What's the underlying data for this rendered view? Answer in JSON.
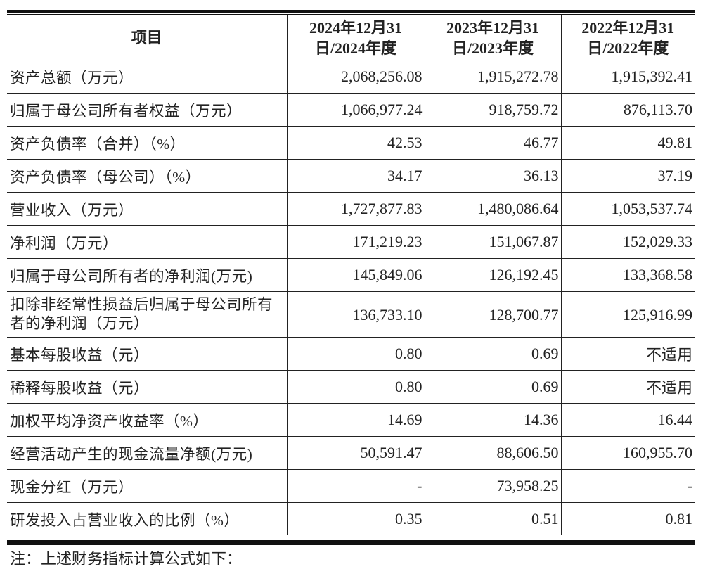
{
  "header": {
    "item": "项目",
    "cols": [
      {
        "line1": "2024年12月31",
        "line2": "日/2024年度"
      },
      {
        "line1": "2023年12月31",
        "line2": "日/2023年度"
      },
      {
        "line1": "2022年12月31",
        "line2": "日/2022年度"
      }
    ]
  },
  "rows": [
    {
      "label": "资产总额（万元）",
      "v": [
        "2,068,256.08",
        "1,915,272.78",
        "1,915,392.41"
      ]
    },
    {
      "label": "归属于母公司所有者权益（万元）",
      "v": [
        "1,066,977.24",
        "918,759.72",
        "876,113.70"
      ]
    },
    {
      "label": "资产负债率（合并）（%）",
      "v": [
        "42.53",
        "46.77",
        "49.81"
      ]
    },
    {
      "label": "资产负债率（母公司）（%）",
      "v": [
        "34.17",
        "36.13",
        "37.19"
      ]
    },
    {
      "label": "营业收入（万元）",
      "v": [
        "1,727,877.83",
        "1,480,086.64",
        "1,053,537.74"
      ]
    },
    {
      "label": "净利润（万元）",
      "v": [
        "171,219.23",
        "151,067.87",
        "152,029.33"
      ]
    },
    {
      "label": "归属于母公司所有者的净利润(万元)",
      "v": [
        "145,849.06",
        "126,192.45",
        "133,368.58"
      ]
    },
    {
      "label": "扣除非经常性损益后归属于母公司所有者的净利润（万元）",
      "v": [
        "136,733.10",
        "128,700.77",
        "125,916.99"
      ]
    },
    {
      "label": "基本每股收益（元）",
      "v": [
        "0.80",
        "0.69",
        "不适用"
      ]
    },
    {
      "label": "稀释每股收益（元）",
      "v": [
        "0.80",
        "0.69",
        "不适用"
      ]
    },
    {
      "label": "加权平均净资产收益率（%）",
      "v": [
        "14.69",
        "14.36",
        "16.44"
      ]
    },
    {
      "label": "经营活动产生的现金流量净额(万元)",
      "v": [
        "50,591.47",
        "88,606.50",
        "160,955.70"
      ]
    },
    {
      "label": "现金分红（万元）",
      "v": [
        "-",
        "73,958.25",
        "-"
      ]
    },
    {
      "label": "研发投入占营业收入的比例（%）",
      "v": [
        "0.35",
        "0.51",
        "0.81"
      ]
    }
  ],
  "note": "注：上述财务指标计算公式如下："
}
